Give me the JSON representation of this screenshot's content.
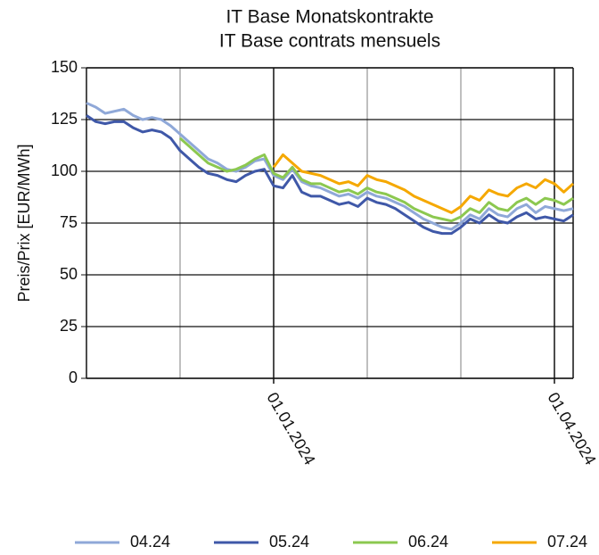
{
  "chart_data": {
    "type": "line",
    "title": "IT Base Monatskontrakte",
    "subtitle": "IT Base contrats mensuels",
    "y_label": "Preis/Prix [EUR/MWh]",
    "x": [
      0,
      1,
      2,
      3,
      4,
      5,
      6,
      7,
      8,
      9,
      10,
      11,
      12,
      13,
      14,
      15,
      16,
      17,
      18,
      19,
      20,
      21,
      22,
      23,
      24,
      25,
      26,
      27,
      28,
      29,
      30,
      31,
      32,
      33,
      34,
      35,
      36,
      37,
      38,
      39,
      40,
      41,
      42,
      43,
      44,
      45,
      46,
      47,
      48,
      49,
      50,
      51,
      52
    ],
    "series": [
      {
        "name": "04.24",
        "color": "#8fa8d8",
        "values": [
          133,
          131,
          128,
          129,
          130,
          127,
          125,
          126,
          125,
          122,
          118,
          114,
          110,
          106,
          104,
          101,
          100,
          102,
          105,
          106,
          98,
          96,
          101,
          95,
          93,
          92,
          90,
          88,
          89,
          87,
          90,
          88,
          87,
          85,
          83,
          80,
          77,
          75,
          73,
          72,
          75,
          79,
          77,
          82,
          79,
          78,
          82,
          84,
          80,
          83,
          82,
          81,
          82
        ]
      },
      {
        "name": "05.24",
        "color": "#3f58a8",
        "values": [
          127,
          124,
          123,
          124,
          124,
          121,
          119,
          120,
          119,
          116,
          110,
          106,
          102,
          99,
          98,
          96,
          95,
          98,
          100,
          101,
          93,
          92,
          98,
          90,
          88,
          88,
          86,
          84,
          85,
          83,
          87,
          85,
          84,
          82,
          79,
          76,
          73,
          71,
          70,
          70,
          73,
          77,
          75,
          79,
          76,
          75,
          78,
          80,
          77,
          78,
          77,
          76,
          79
        ]
      },
      {
        "name": "06.24",
        "color": "#8cc850",
        "values": [
          null,
          null,
          null,
          null,
          null,
          null,
          null,
          null,
          null,
          null,
          116,
          112,
          108,
          104,
          102,
          100,
          101,
          103,
          106,
          108,
          99,
          97,
          102,
          96,
          94,
          94,
          92,
          90,
          91,
          89,
          92,
          90,
          89,
          87,
          85,
          82,
          80,
          78,
          77,
          76,
          78,
          82,
          80,
          85,
          82,
          81,
          85,
          87,
          84,
          87,
          86,
          84,
          87
        ]
      },
      {
        "name": "07.24",
        "color": "#f5a800",
        "values": [
          null,
          null,
          null,
          null,
          null,
          null,
          null,
          null,
          null,
          null,
          null,
          null,
          null,
          null,
          null,
          null,
          null,
          null,
          null,
          null,
          102,
          108,
          104,
          100,
          99,
          98,
          96,
          94,
          95,
          93,
          98,
          96,
          95,
          93,
          91,
          88,
          86,
          84,
          82,
          80,
          83,
          88,
          86,
          91,
          89,
          88,
          92,
          94,
          92,
          96,
          94,
          90,
          94
        ]
      }
    ],
    "xlim": [
      0,
      52
    ],
    "xticks": [
      {
        "value": 20,
        "label": "01.01.2024"
      },
      {
        "value": 50,
        "label": "01.04.2024"
      }
    ],
    "xminor": [
      10,
      30,
      40
    ],
    "ylim": [
      0,
      150
    ],
    "yticks": [
      0,
      25,
      50,
      75,
      100,
      125,
      150
    ],
    "grid": true,
    "legend": "bottom"
  }
}
